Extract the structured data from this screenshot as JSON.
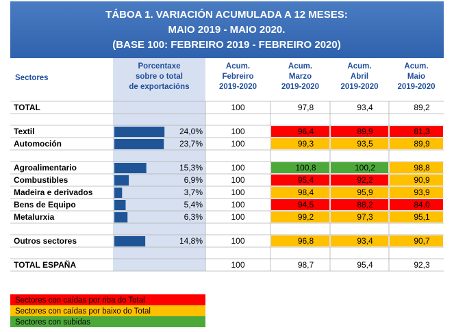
{
  "title": [
    "TÁBOA 1. VARIACIÓN ACUMULADA A 12 MESES:",
    "MAIO 2019 - MAIO 2020.",
    "(BASE 100: FEBREIRO 2019 - FEBREIRO 2020)"
  ],
  "header": [
    "Sectores",
    [
      "Porcentaxe",
      "sobre o total",
      "de exportacións"
    ],
    [
      "Acum.",
      "Febreiro",
      "2019-2020"
    ],
    [
      "Acum.",
      "Marzo",
      "2019-2020"
    ],
    [
      "Acum.",
      "Abril",
      "2019-2020"
    ],
    [
      "Acum.",
      "Maio",
      "2019-2020"
    ]
  ],
  "bar_color": "#1f5597",
  "rows": [
    {
      "sector": "TOTAL",
      "cells": [
        "100",
        "97,8",
        "93,4",
        "89,2"
      ],
      "colors": [
        null,
        null,
        null,
        null
      ]
    },
    {
      "sector": "Textil",
      "share": {
        "value": 24.0,
        "label": "24,0%"
      },
      "cells": [
        "100",
        "96,4",
        "89,9",
        "81,3"
      ],
      "colors": [
        null,
        "#ff0000",
        "#ff0000",
        "#ff0000"
      ]
    },
    {
      "sector": "Automoción",
      "share": {
        "value": 23.7,
        "label": "23,7%"
      },
      "cells": [
        "100",
        "99,3",
        "93,5",
        "89,9"
      ],
      "colors": [
        null,
        "#ffc000",
        "#ffc000",
        "#ffc000"
      ]
    },
    {
      "sector": "Agroalimentario",
      "share": {
        "value": 15.3,
        "label": "15,3%"
      },
      "cells": [
        "100",
        "100,8",
        "100,2",
        "98,8"
      ],
      "colors": [
        null,
        "#4ca939",
        "#4ca939",
        "#ffc000"
      ]
    },
    {
      "sector": "Combustibles",
      "share": {
        "value": 6.9,
        "label": "6,9%"
      },
      "cells": [
        "100",
        "95,4",
        "92,2",
        "90,9"
      ],
      "colors": [
        null,
        "#ff0000",
        "#ff0000",
        "#ffc000"
      ]
    },
    {
      "sector": "Madeira e derivados",
      "share": {
        "value": 3.7,
        "label": "3,7%"
      },
      "cells": [
        "100",
        "98,4",
        "95,9",
        "93,9"
      ],
      "colors": [
        null,
        "#ffc000",
        "#ffc000",
        "#ffc000"
      ]
    },
    {
      "sector": "Bens de Equipo",
      "share": {
        "value": 5.4,
        "label": "5,4%"
      },
      "cells": [
        "100",
        "94,5",
        "88,2",
        "84,0"
      ],
      "colors": [
        null,
        "#ff0000",
        "#ff0000",
        "#ff0000"
      ]
    },
    {
      "sector": "Metalurxia",
      "share": {
        "value": 6.3,
        "label": "6,3%"
      },
      "cells": [
        "100",
        "99,2",
        "97,3",
        "95,1"
      ],
      "colors": [
        null,
        "#ffc000",
        "#ffc000",
        "#ffc000"
      ]
    },
    {
      "sector": "Outros sectores",
      "share": {
        "value": 14.8,
        "label": "14,8%"
      },
      "cells": [
        "100",
        "96,8",
        "93,4",
        "90,7"
      ],
      "colors": [
        null,
        "#ffc000",
        "#ffc000",
        "#ffc000"
      ]
    },
    {
      "sector": "TOTAL ESPAÑA",
      "cells": [
        "100",
        "98,7",
        "95,4",
        "92,3"
      ],
      "colors": [
        null,
        null,
        null,
        null
      ]
    }
  ],
  "legend": [
    {
      "label": "Sectores con caídas por riba do Total",
      "color": "#ff0000"
    },
    {
      "label": "Sectores con caídas por baixo do Total",
      "color": "#ffc000"
    },
    {
      "label": "Sectores con subidas",
      "color": "#4ca939"
    }
  ]
}
